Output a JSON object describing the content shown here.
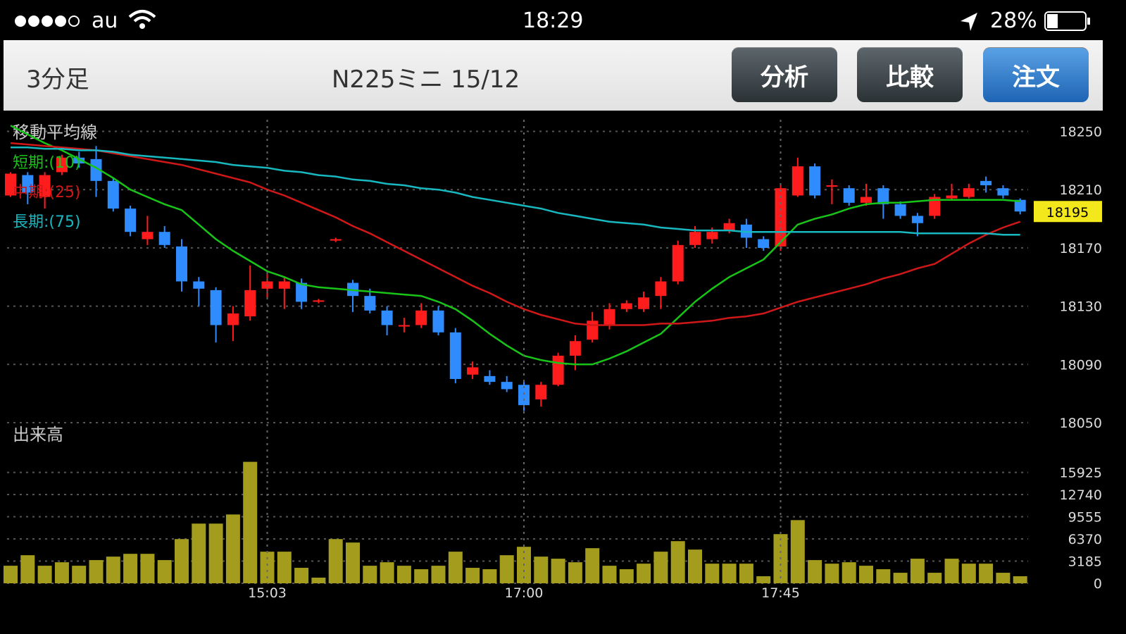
{
  "status_bar": {
    "carrier": "au",
    "time": "18:29",
    "battery": "28%"
  },
  "header": {
    "period": "3分足",
    "symbol": "N225ミニ 15/12",
    "buttons": [
      "分析",
      "比較",
      "注文"
    ]
  },
  "chart_data": [
    {
      "type": "candlestick",
      "title": "移動平均線",
      "open": [
        18206,
        18220,
        18205,
        18222,
        18232,
        18231,
        18216,
        18197,
        18176,
        18181,
        18171,
        18147,
        18141,
        18117,
        18123,
        18142,
        18142,
        18146,
        18133,
        18175,
        18146,
        18137,
        18127,
        18116,
        18117,
        18127,
        18112,
        18083,
        18082,
        18078,
        18076,
        18066,
        18076,
        18096,
        18107,
        18117,
        18128,
        18128,
        18137,
        18147,
        18172,
        18176,
        18182,
        18186,
        18176,
        18171,
        18206,
        18226,
        18212,
        18211,
        18201,
        18211,
        18200,
        18192,
        18192,
        18204,
        18205,
        18216,
        18211,
        18203
      ],
      "high": [
        18222,
        18222,
        18222,
        18234,
        18236,
        18240,
        18218,
        18199,
        18192,
        18185,
        18176,
        18150,
        18143,
        18130,
        18158,
        18152,
        18150,
        18149,
        18135,
        18177,
        18148,
        18142,
        18130,
        18122,
        18132,
        18130,
        18115,
        18092,
        18086,
        18082,
        18078,
        18078,
        18098,
        18110,
        18126,
        18132,
        18134,
        18140,
        18150,
        18175,
        18185,
        18184,
        18190,
        18190,
        18178,
        18213,
        18232,
        18228,
        18217,
        18213,
        18214,
        18213,
        18202,
        18194,
        18207,
        18214,
        18214,
        18219,
        18213,
        18204
      ],
      "low": [
        18205,
        18200,
        18197,
        18220,
        18225,
        18205,
        18195,
        18178,
        18172,
        18170,
        18140,
        18130,
        18105,
        18106,
        18120,
        18135,
        18128,
        18128,
        18132,
        18174,
        18126,
        18125,
        18110,
        18112,
        18115,
        18110,
        18077,
        18080,
        18076,
        18071,
        18058,
        18061,
        18075,
        18086,
        18105,
        18114,
        18126,
        18126,
        18128,
        18145,
        18170,
        18173,
        18180,
        18170,
        18168,
        18168,
        18205,
        18204,
        18200,
        18199,
        18199,
        18190,
        18190,
        18178,
        18190,
        18203,
        18204,
        18208,
        18204,
        18193
      ],
      "close": [
        18221,
        18208,
        18220,
        18232,
        18228,
        18216,
        18197,
        18181,
        18181,
        18172,
        18147,
        18142,
        18117,
        18125,
        18141,
        18147,
        18147,
        18133,
        18134,
        18176,
        18137,
        18127,
        18117,
        18117,
        18127,
        18112,
        18080,
        18088,
        18078,
        18073,
        18062,
        18076,
        18096,
        18106,
        18120,
        18128,
        18132,
        18136,
        18147,
        18172,
        18181,
        18181,
        18187,
        18177,
        18170,
        18211,
        18226,
        18206,
        18213,
        18201,
        18205,
        18200,
        18192,
        18187,
        18205,
        18206,
        18211,
        18213,
        18206,
        18195
      ],
      "up_color": "#ff1c1c",
      "down_color": "#2e8cff",
      "ylim": [
        18050,
        18258
      ],
      "yticks": [
        18050,
        18090,
        18130,
        18170,
        18210,
        18250
      ],
      "grid": true,
      "last_price": 18195,
      "last_price_color": "#f2e81c",
      "series": [
        {
          "name": "短期:(10)",
          "color": "#18c418",
          "values": [
            18254,
            18248,
            18242,
            18237,
            18231,
            18225,
            18218,
            18210,
            18205,
            18200,
            18196,
            18186,
            18176,
            18168,
            18161,
            18154,
            18150,
            18145,
            18143,
            18142,
            18141,
            18140,
            18139,
            18138,
            18137,
            18133,
            18128,
            18120,
            18111,
            18103,
            18096,
            18093,
            18091,
            18090,
            18090,
            18094,
            18099,
            18105,
            18111,
            18122,
            18133,
            18142,
            18150,
            18156,
            18162,
            18174,
            18186,
            18190,
            18193,
            18197,
            18200,
            18201,
            18201,
            18202,
            18203,
            18203,
            18203,
            18203,
            18203,
            18202
          ]
        },
        {
          "name": "中期:(25)",
          "color": "#d01818",
          "values": [
            18242,
            18241,
            18240,
            18239,
            18238,
            18237,
            18235,
            18233,
            18231,
            18229,
            18227,
            18224,
            18221,
            18218,
            18215,
            18210,
            18206,
            18201,
            18196,
            18191,
            18185,
            18180,
            18174,
            18168,
            18162,
            18156,
            18150,
            18144,
            18139,
            18133,
            18128,
            18124,
            18121,
            18118,
            18117,
            18117,
            18117,
            18117,
            18118,
            18118,
            18119,
            18120,
            18122,
            18123,
            18125,
            18129,
            18133,
            18136,
            18139,
            18142,
            18145,
            18149,
            18152,
            18156,
            18159,
            18166,
            18173,
            18179,
            18184,
            18188
          ]
        },
        {
          "name": "長期:(75)",
          "color": "#18b8c0",
          "values": [
            18239,
            18239,
            18238,
            18238,
            18237,
            18237,
            18236,
            18234,
            18233,
            18232,
            18231,
            18230,
            18229,
            18227,
            18226,
            18225,
            18223,
            18222,
            18220,
            18219,
            18217,
            18216,
            18214,
            18213,
            18211,
            18210,
            18208,
            18205,
            18203,
            18201,
            18199,
            18197,
            18194,
            18192,
            18190,
            18188,
            18187,
            18186,
            18184,
            18183,
            18182,
            18182,
            18182,
            18181,
            18181,
            18181,
            18181,
            18181,
            18181,
            18181,
            18181,
            18181,
            18181,
            18180,
            18180,
            18180,
            18180,
            18180,
            18179,
            18179
          ]
        }
      ]
    },
    {
      "type": "bar",
      "title": "出来高",
      "categories": [
        null,
        null,
        null,
        null,
        null,
        null,
        null,
        null,
        null,
        null,
        null,
        null,
        null,
        null,
        null,
        "15:03",
        null,
        null,
        null,
        null,
        null,
        null,
        null,
        null,
        null,
        null,
        null,
        null,
        null,
        null,
        "17:00",
        null,
        null,
        null,
        null,
        null,
        null,
        null,
        null,
        null,
        null,
        null,
        null,
        null,
        null,
        "17:45",
        null,
        null,
        null,
        null,
        null,
        null,
        null,
        null,
        null,
        null,
        null,
        null,
        null,
        null
      ],
      "values": [
        2520,
        4030,
        2520,
        3020,
        2520,
        3330,
        3830,
        4230,
        4230,
        3330,
        6350,
        8570,
        8570,
        9880,
        17440,
        4540,
        4540,
        2220,
        810,
        6350,
        5850,
        2520,
        3020,
        2520,
        2020,
        2520,
        4540,
        2220,
        2020,
        4030,
        5240,
        3830,
        3530,
        3020,
        5040,
        2520,
        2020,
        2820,
        4540,
        6050,
        4840,
        2820,
        2820,
        2820,
        1010,
        7060,
        9070,
        3330,
        2820,
        3020,
        2520,
        2020,
        1510,
        3530,
        1510,
        3530,
        2820,
        2820,
        1510,
        1010
      ],
      "color": "#a39c1c",
      "ylim": [
        0,
        17500
      ],
      "yticks": [
        0,
        3185,
        6370,
        9555,
        12740,
        15925
      ],
      "grid": true
    }
  ]
}
